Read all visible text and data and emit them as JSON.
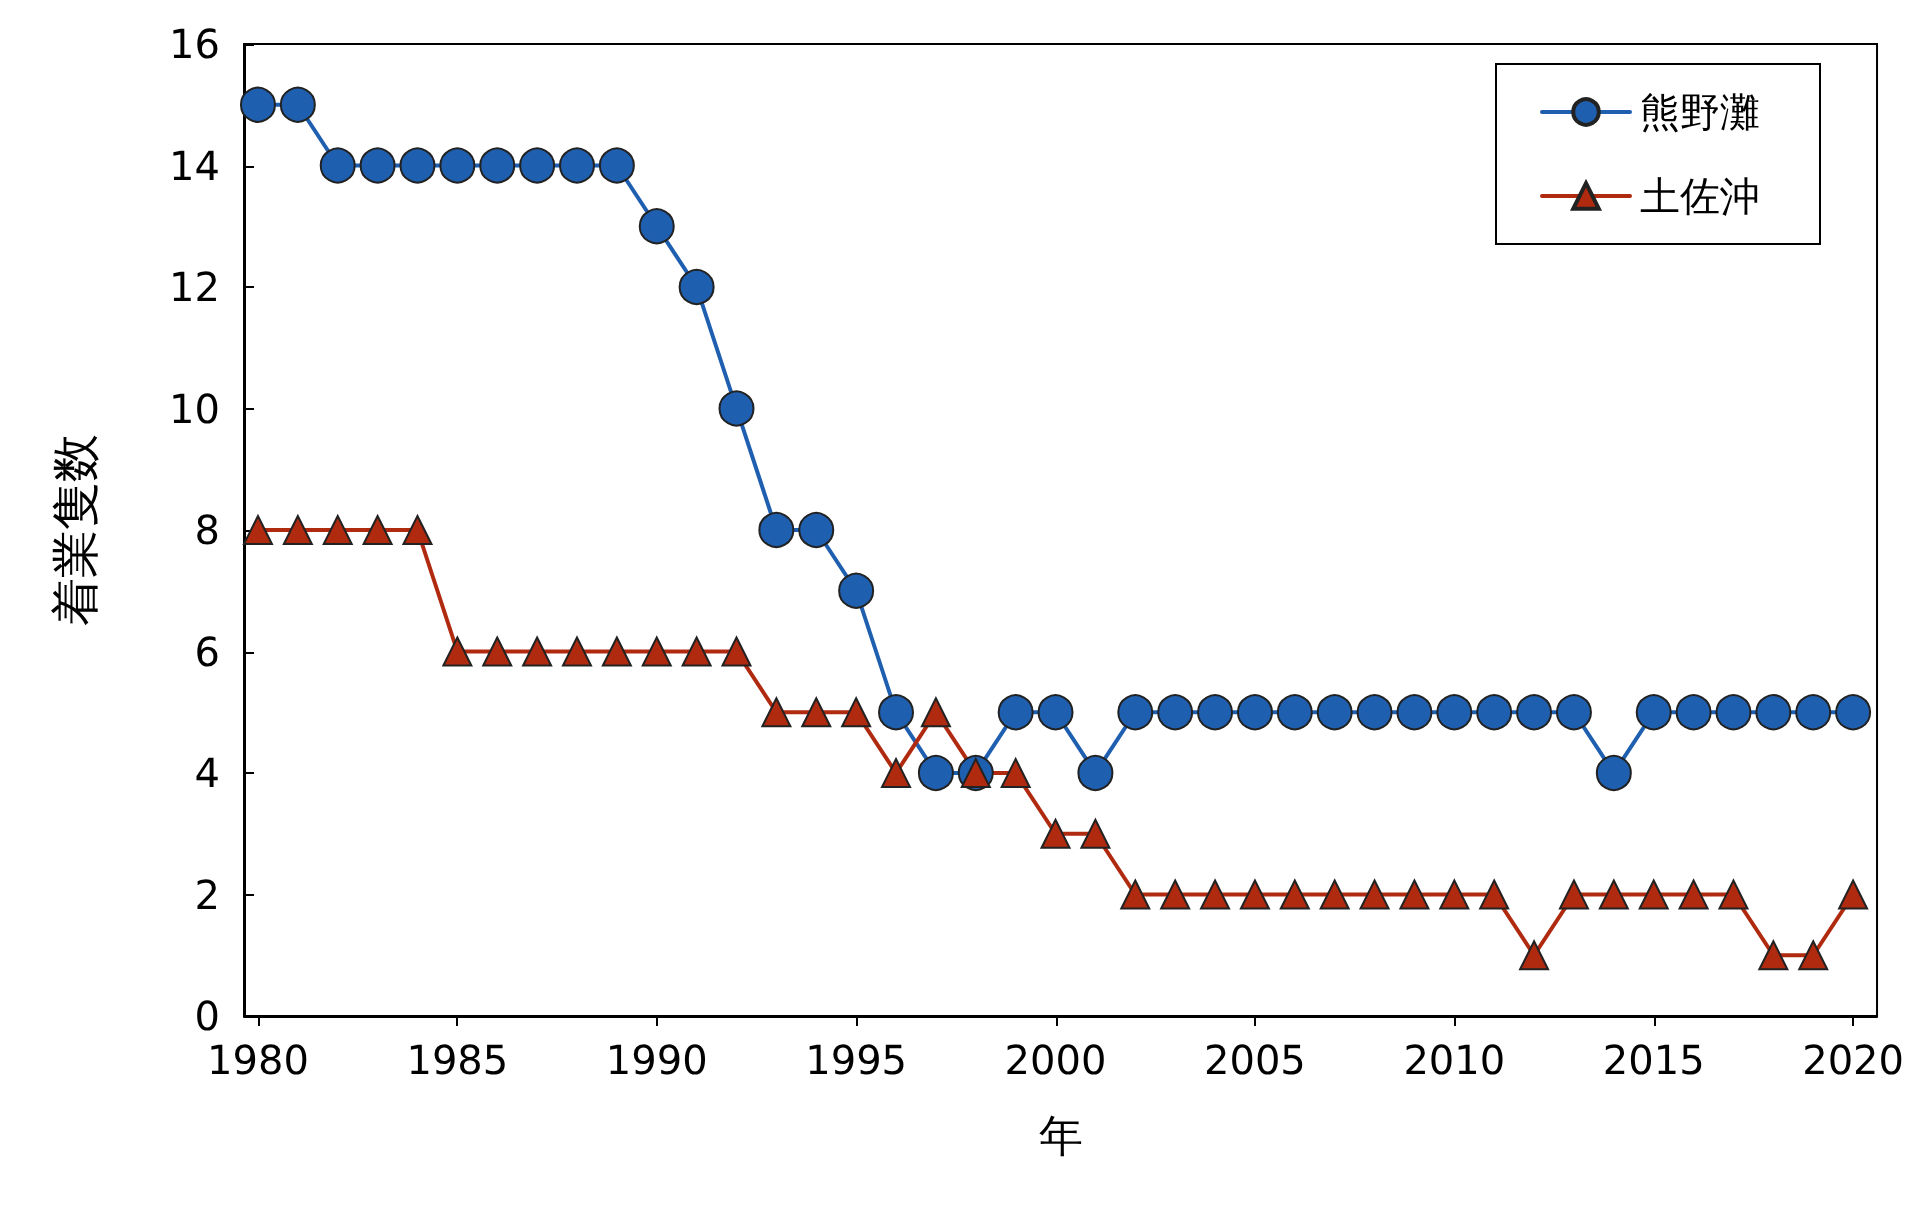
{
  "chart_data": {
    "type": "line",
    "xlabel": "年",
    "ylabel": "着業隻数",
    "x": [
      1980,
      1981,
      1982,
      1983,
      1984,
      1985,
      1986,
      1987,
      1988,
      1989,
      1990,
      1991,
      1992,
      1993,
      1994,
      1995,
      1996,
      1997,
      1998,
      1999,
      2000,
      2001,
      2002,
      2003,
      2004,
      2005,
      2006,
      2007,
      2008,
      2009,
      2010,
      2011,
      2012,
      2013,
      2014,
      2015,
      2016,
      2017,
      2018,
      2019,
      2020
    ],
    "series": [
      {
        "name": "熊野灘",
        "color": "#1f5fb0",
        "marker": "circle",
        "values": [
          15,
          15,
          14,
          14,
          14,
          14,
          14,
          14,
          14,
          14,
          13,
          12,
          10,
          8,
          8,
          7,
          5,
          4,
          4,
          5,
          5,
          4,
          5,
          5,
          5,
          5,
          5,
          5,
          5,
          5,
          5,
          5,
          5,
          5,
          4,
          5,
          5,
          5,
          5,
          5,
          5
        ]
      },
      {
        "name": "土佐沖",
        "color": "#b02a10",
        "marker": "triangle",
        "values": [
          8,
          8,
          8,
          8,
          8,
          6,
          6,
          6,
          6,
          6,
          6,
          6,
          6,
          5,
          5,
          5,
          4,
          5,
          4,
          4,
          3,
          3,
          2,
          2,
          2,
          2,
          2,
          2,
          2,
          2,
          2,
          2,
          1,
          2,
          2,
          2,
          2,
          2,
          1,
          1,
          2
        ]
      }
    ],
    "xlim": [
      1979.65,
      2020.6
    ],
    "xticks": [
      1980,
      1985,
      1990,
      1995,
      2000,
      2005,
      2010,
      2015,
      2020
    ],
    "ylim": [
      0,
      16
    ],
    "yticks": [
      0,
      2,
      4,
      6,
      8,
      10,
      12,
      14,
      16
    ],
    "grid": false,
    "legend": "top right",
    "line_style": "solid"
  }
}
